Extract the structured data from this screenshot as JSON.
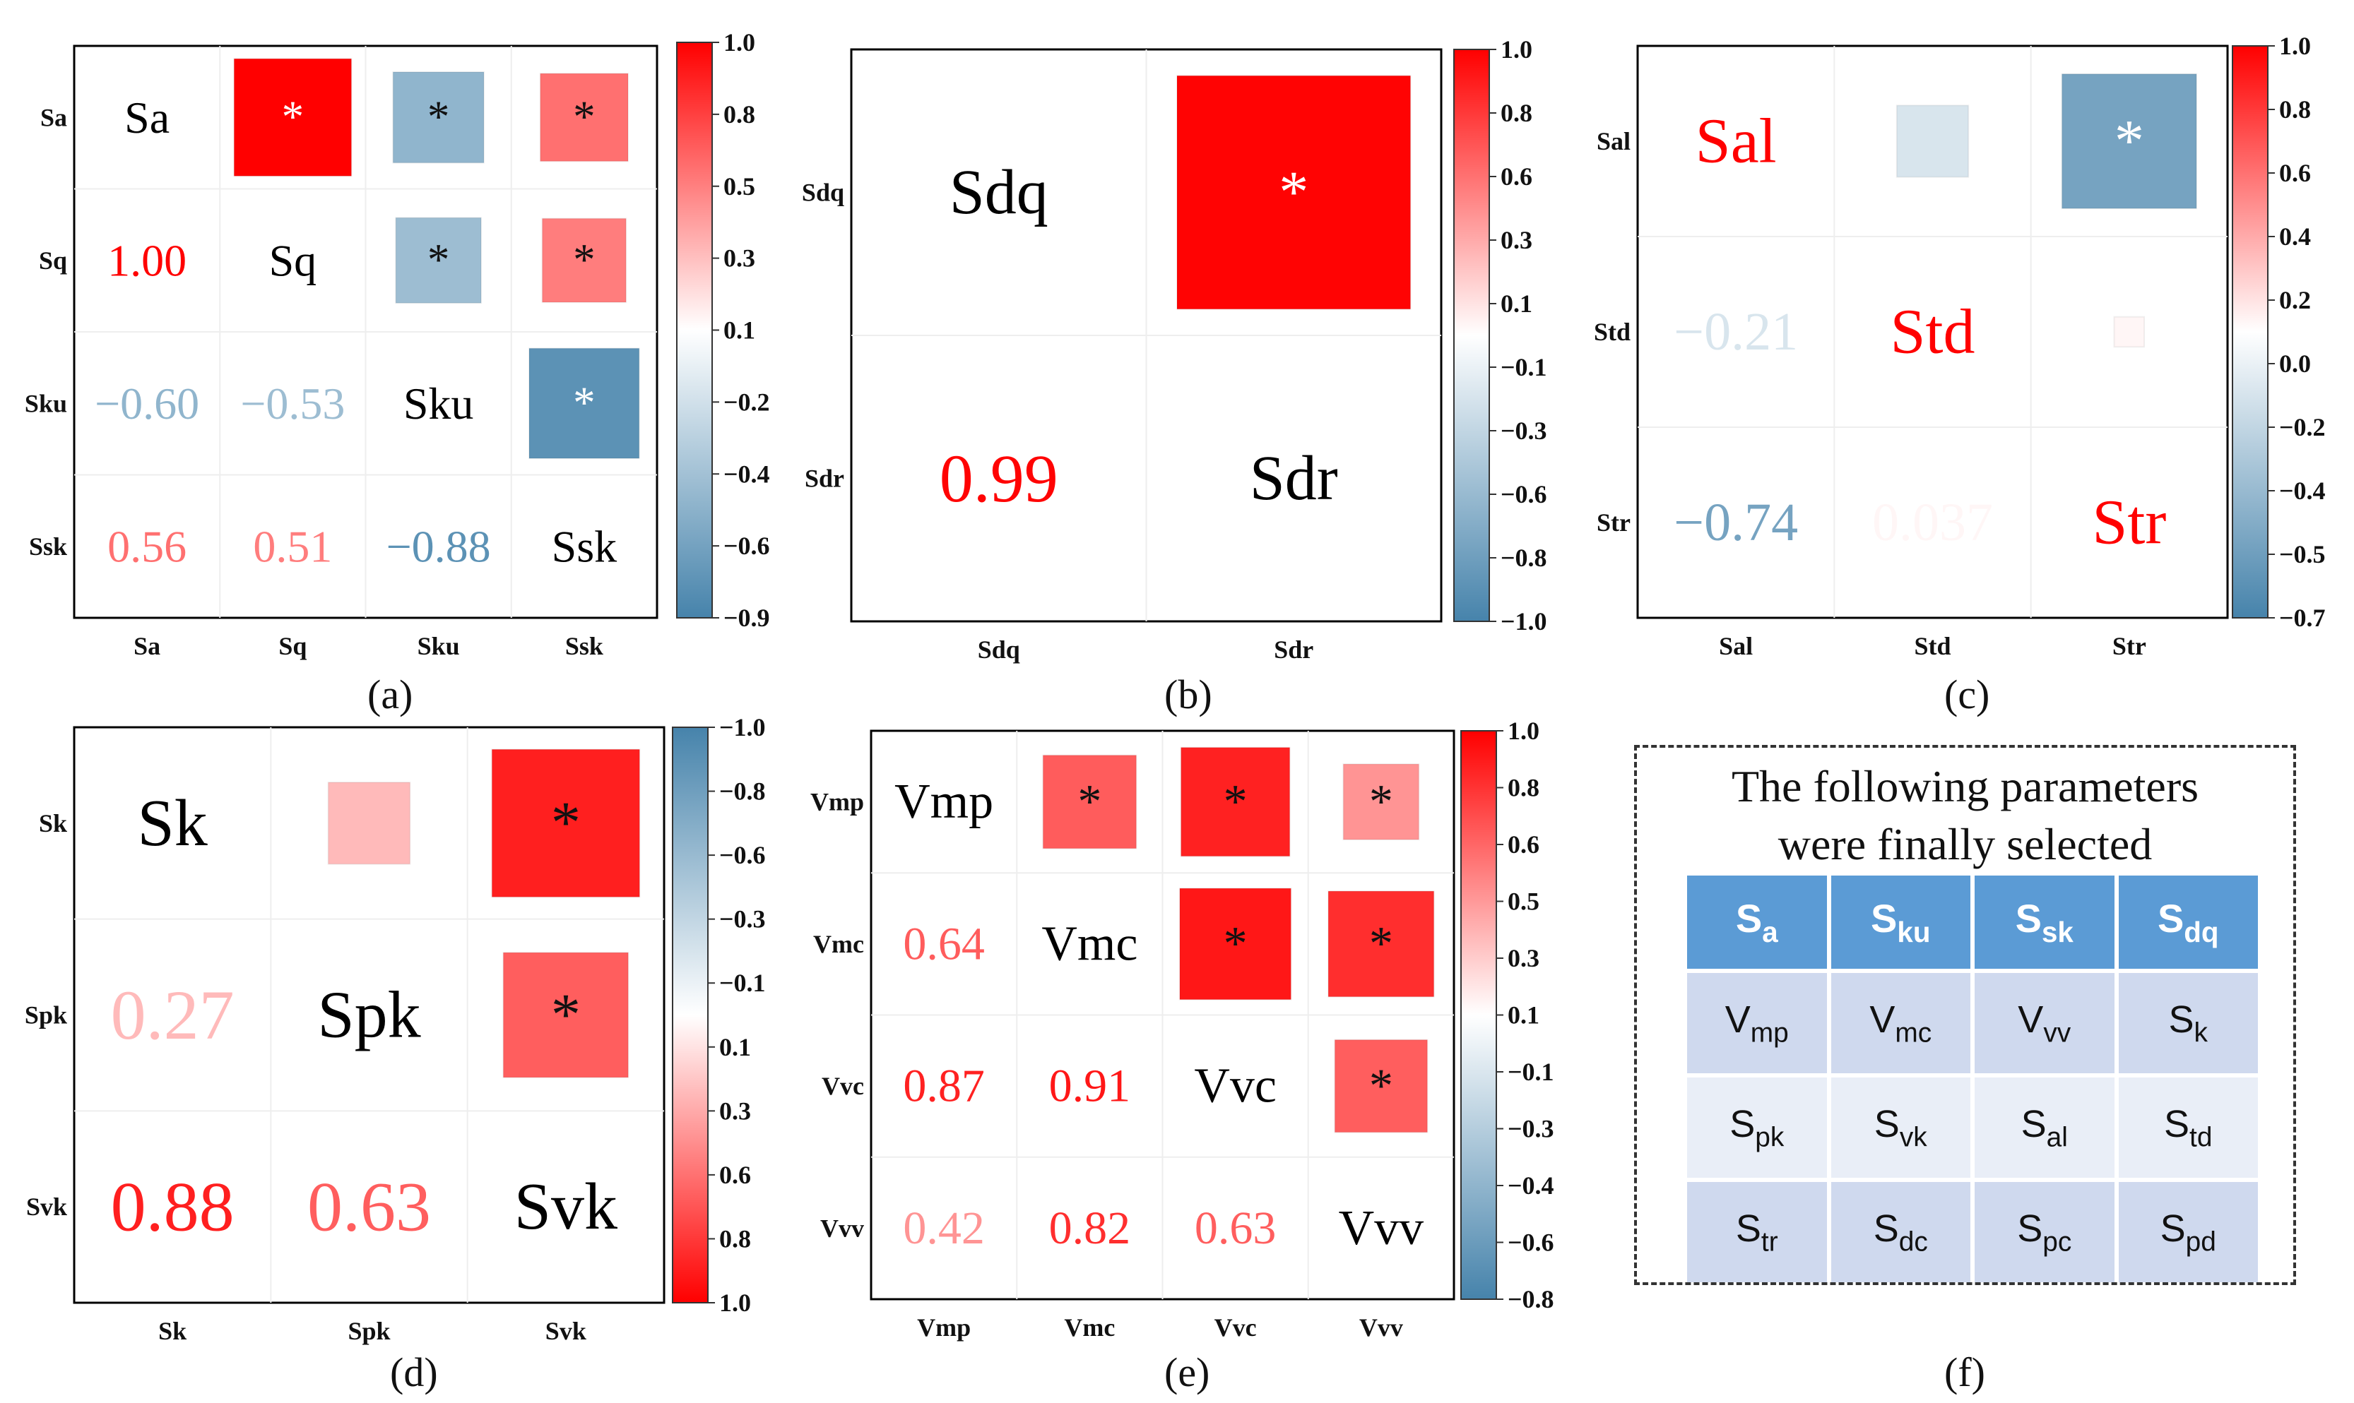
{
  "chart_data": [
    {
      "type": "heatmap",
      "panel": "(a)",
      "labels": [
        "Sa",
        "Sq",
        "Sku",
        "Ssk"
      ],
      "matrix": [
        [
          1,
          1.0,
          -0.6,
          0.56
        ],
        [
          1.0,
          1,
          -0.53,
          0.51
        ],
        [
          -0.6,
          -0.53,
          1,
          -0.88
        ],
        [
          0.56,
          0.51,
          -0.88,
          1
        ]
      ],
      "lower_labels": [
        [
          null,
          null,
          null,
          null
        ],
        [
          "1.00",
          null,
          null,
          null
        ],
        [
          "−0.60",
          "−0.53",
          null,
          null
        ],
        [
          "0.56",
          "0.51",
          "−0.88",
          null
        ]
      ],
      "significant": [
        [
          0,
          1,
          1,
          1
        ],
        [
          0,
          0,
          1,
          1
        ],
        [
          0,
          0,
          0,
          1
        ],
        [
          0,
          0,
          0,
          0
        ]
      ],
      "cmap": "RdBu",
      "vmin": -0.9,
      "vmax": 1.0,
      "colorbar_ticks": [
        "1.0",
        "0.8",
        "0.5",
        "0.3",
        "0.1",
        "−0.2",
        "−0.4",
        "−0.6",
        "−0.9"
      ],
      "diag_label_color": "#000000"
    },
    {
      "type": "heatmap",
      "panel": "(b)",
      "labels": [
        "Sdq",
        "Sdr"
      ],
      "matrix": [
        [
          1,
          0.99
        ],
        [
          0.99,
          1
        ]
      ],
      "lower_labels": [
        [
          null,
          null
        ],
        [
          "0.99",
          null
        ]
      ],
      "significant": [
        [
          0,
          1
        ],
        [
          0,
          0
        ]
      ],
      "cmap": "RdBu",
      "vmin": -1.0,
      "vmax": 1.0,
      "colorbar_ticks": [
        "1.0",
        "0.8",
        "0.6",
        "0.3",
        "0.1",
        "−0.1",
        "−0.3",
        "−0.6",
        "−0.8",
        "−1.0"
      ],
      "diag_label_color": "#000000"
    },
    {
      "type": "heatmap",
      "panel": "(c)",
      "labels": [
        "Sal",
        "Std",
        "Str"
      ],
      "matrix": [
        [
          1,
          -0.21,
          -0.74
        ],
        [
          -0.21,
          1,
          0.037
        ],
        [
          -0.74,
          0.037,
          1
        ]
      ],
      "lower_labels": [
        [
          null,
          null,
          null
        ],
        [
          "−0.21",
          null,
          null
        ],
        [
          "−0.74",
          "0.037",
          null
        ]
      ],
      "significant": [
        [
          0,
          0,
          1
        ],
        [
          0,
          0,
          0
        ],
        [
          0,
          0,
          0
        ]
      ],
      "cmap": "RdBu",
      "vmin": -0.7,
      "vmax": 1.0,
      "colorbar_ticks": [
        "1.0",
        "0.8",
        "0.6",
        "0.4",
        "0.2",
        "0.0",
        "−0.2",
        "−0.4",
        "−0.5",
        "−0.7"
      ],
      "diag_label_color": "#ff0000"
    },
    {
      "type": "heatmap",
      "panel": "(d)",
      "labels": [
        "Sk",
        "Spk",
        "Svk"
      ],
      "matrix": [
        [
          1,
          0.27,
          0.88
        ],
        [
          0.27,
          1,
          0.63
        ],
        [
          0.88,
          0.63,
          1
        ]
      ],
      "lower_labels": [
        [
          null,
          null,
          null
        ],
        [
          "0.27",
          null,
          null
        ],
        [
          "0.88",
          "0.63",
          null
        ]
      ],
      "significant": [
        [
          0,
          0,
          1
        ],
        [
          0,
          0,
          1
        ],
        [
          0,
          0,
          0
        ]
      ],
      "cmap": "RdBu",
      "vmin": -1.0,
      "vmax": 1.0,
      "colorbar_reversed": true,
      "colorbar_ticks": [
        "−1.0",
        "−0.8",
        "−0.6",
        "−0.3",
        "−0.1",
        "0.1",
        "0.3",
        "0.6",
        "0.8",
        "1.0"
      ],
      "diag_label_color": "#000000"
    },
    {
      "type": "heatmap",
      "panel": "(e)",
      "labels": [
        "Vmp",
        "Vmc",
        "Vvc",
        "Vvv"
      ],
      "matrix": [
        [
          1,
          0.64,
          0.87,
          0.42
        ],
        [
          0.64,
          1,
          0.91,
          0.82
        ],
        [
          0.87,
          0.91,
          1,
          0.63
        ],
        [
          0.42,
          0.82,
          0.63,
          1
        ]
      ],
      "lower_labels": [
        [
          null,
          null,
          null,
          null
        ],
        [
          "0.64",
          null,
          null,
          null
        ],
        [
          "0.87",
          "0.91",
          null,
          null
        ],
        [
          "0.42",
          "0.82",
          "0.63",
          null
        ]
      ],
      "significant": [
        [
          0,
          1,
          1,
          1
        ],
        [
          0,
          0,
          1,
          1
        ],
        [
          0,
          0,
          0,
          1
        ],
        [
          0,
          0,
          0,
          0
        ]
      ],
      "cmap": "RdBu",
      "vmin": -0.8,
      "vmax": 1.0,
      "colorbar_ticks": [
        "1.0",
        "0.8",
        "0.6",
        "0.5",
        "0.3",
        "0.1",
        "−0.1",
        "−0.3",
        "−0.4",
        "−0.6",
        "−0.8"
      ],
      "diag_label_color": "#000000"
    }
  ],
  "panel_labels": [
    "(a)",
    "(b)",
    "(c)",
    "(d)",
    "(e)",
    "(f)"
  ],
  "significance_marker": "*",
  "selected_parameters": {
    "title_line1": "The following parameters",
    "title_line2": "were finally selected",
    "header": [
      {
        "base": "S",
        "sub": "a"
      },
      {
        "base": "S",
        "sub": "ku"
      },
      {
        "base": "S",
        "sub": "sk"
      },
      {
        "base": "S",
        "sub": "dq"
      }
    ],
    "rows": [
      [
        {
          "base": "V",
          "sub": "mp"
        },
        {
          "base": "V",
          "sub": "mc"
        },
        {
          "base": "V",
          "sub": "vv"
        },
        {
          "base": "S",
          "sub": "k"
        }
      ],
      [
        {
          "base": "S",
          "sub": "pk"
        },
        {
          "base": "S",
          "sub": "vk"
        },
        {
          "base": "S",
          "sub": "al"
        },
        {
          "base": "S",
          "sub": "td"
        }
      ],
      [
        {
          "base": "S",
          "sub": "tr"
        },
        {
          "base": "S",
          "sub": "dc"
        },
        {
          "base": "S",
          "sub": "pc"
        },
        {
          "base": "S",
          "sub": "pd"
        }
      ]
    ]
  }
}
